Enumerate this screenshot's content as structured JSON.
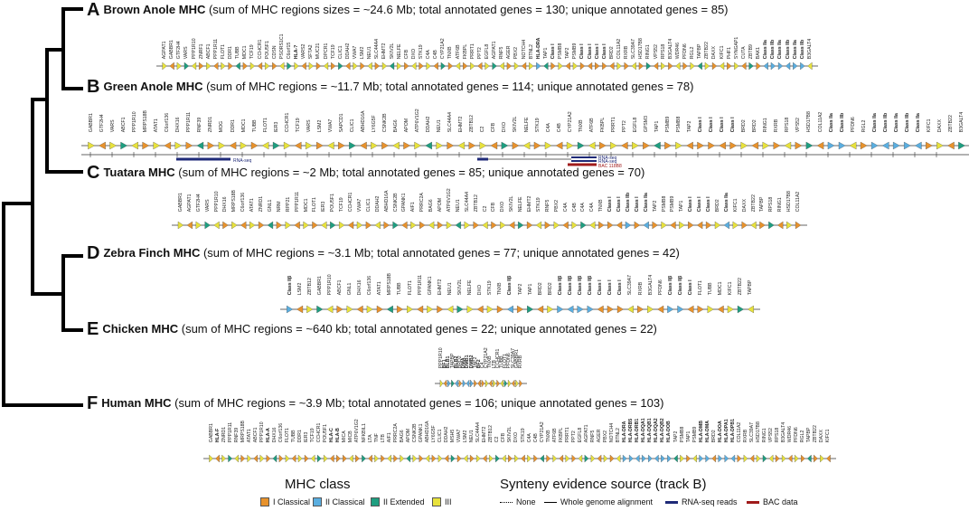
{
  "colors": {
    "class_I": "#e8922c",
    "class_II": "#5aaee0",
    "extended": "#1e9e80",
    "class_III": "#e8e23c",
    "rnaseq": "#1f2a78",
    "bac": "#a01b1b"
  },
  "panels": [
    {
      "letter": "A",
      "species": "Brown Anole MHC",
      "summary": " (sum of MHC regions sizes = ~24.6 Mb; total annotated genes = 130; unique annotated genes = 85)",
      "genes": [
        "AGPAT1",
        "GABBR1",
        "GTF2H4",
        "VARS",
        "PPP1R10",
        "ZNRF1",
        "ABCF1",
        "PPP1R11",
        "FLOT1",
        "DDR1",
        "TUBB",
        "MDC1",
        "TCF19",
        "CCHCR1",
        "POU5F1",
        "CDSN",
        "PSORS1C1",
        "C6orf15",
        "HLA-?",
        "VARS2",
        "SFTA2",
        "MUC21",
        "DPCR1",
        "TCF19",
        "CLIC1",
        "DDAH2",
        "VWA7",
        "LSM2",
        "NEU1",
        "SLC44A4",
        "EHMT2",
        "SKIV2L",
        "NELFE",
        "CFB",
        "DXO",
        "STK19",
        "C4A",
        "C4B",
        "CYP21A2",
        "TNXB",
        "ATF6B",
        "FKBPL",
        "PRRT1",
        "PPT2",
        "EGFL8",
        "AGPAT1",
        "RNF5",
        "AGER",
        "PBX2",
        "NOTCH4",
        "BTNL2",
        "HLA-DRA",
        "TAP1",
        "Class I",
        "PSMB8",
        "TAP2",
        "PSMB9",
        "Class I",
        "Class I",
        "Class I",
        "Class I",
        "BRD2",
        "COL11A2",
        "RXRB",
        "SLC39A7",
        "HSD17B8",
        "RING1",
        "VPS52",
        "RPS18",
        "B3GALT4",
        "WDR46",
        "PFDN6",
        "RGL2",
        "TAPBP",
        "ZBTB22",
        "DAXX",
        "KIFC1",
        "PHF1",
        "SYNGAP1",
        "CUTA",
        "ZBTB9",
        "BAK1",
        "Class IIa",
        "Class IIb",
        "Class IIa",
        "Class IIb",
        "Class IIa",
        "Class IIb",
        "B3GALT4"
      ],
      "gene_colors": "IIIIIIIIIIIIIIIIIIIIIIIIIIIIIIIIIIIIIIIIIIIIIIIIIIIIIIEIIIIIIIIIIIIIIIIIIIIIIIIIIIIIIIIIIIIIIIIIIIIIIIIIIIIIIIIIIIIIIIIIIIIIIIIIIIIIII",
      "track_note": ""
    },
    {
      "letter": "B",
      "species": "Green Anole MHC",
      "summary": " (sum of MHC regions = ~11.7 Mb; total annotated genes = 114; unique annotated genes = 78)",
      "genes": [
        "GABBR1",
        "GTF2H4",
        "VARS",
        "ABCF1",
        "PPP1R10",
        "MRPS18B",
        "ATAT1",
        "C6orf136",
        "DHX16",
        "PPP1R11",
        "RNF39",
        "ZNRD1",
        "MOG",
        "DDR1",
        "MDC1",
        "TUBB",
        "FLOT1",
        "IER3",
        "CCHCR1",
        "TCF19",
        "VARS",
        "LSM2",
        "VWA7",
        "SAPCD1",
        "CLIC1",
        "ABHD16A",
        "LY6G5F",
        "CSNK2B",
        "BAG6",
        "APOM",
        "ATP6V1G2",
        "DDAH2",
        "NEU1",
        "SLC44A4",
        "EHMT2",
        "ZBTB12",
        "C2",
        "CFB",
        "DXO",
        "SKIV2L",
        "NELFE",
        "STK19",
        "C4A",
        "C4B",
        "CYP21A2",
        "TNXB",
        "ATF6B",
        "FKBPL",
        "PRRT1",
        "PPT2",
        "EGFL8",
        "GPSM3",
        "TAP1",
        "PSMB9",
        "PSMB8",
        "TAP2",
        "Class I",
        "Class I",
        "Class I",
        "Class I",
        "BRD2",
        "BRD2",
        "RING1",
        "RXRB",
        "RPS18",
        "VPS52",
        "HSD17B8",
        "COL11A2",
        "Class IIa",
        "Class IIb",
        "PFDN6",
        "RGL2",
        "Class IIa",
        "Class IIb",
        "Class IIa",
        "Class IIb",
        "Class IIa",
        "KIFC1",
        "DAXX",
        "ZBTB22",
        "B3GALT4"
      ],
      "gene_colors": "",
      "track_labels": [
        "RNA-seq",
        "RNA-seq",
        "RNA-seq",
        "BAC 118B8"
      ]
    },
    {
      "letter": "C",
      "species": "Tuatara MHC",
      "summary": " (sum of MHC regions = ~2 Mb; total annotated genes = 85; unique annotated genes = 70)",
      "genes": [
        "GABBR1",
        "AGPAT1",
        "GTF2H4",
        "VARS",
        "PPP1R10",
        "DHX16",
        "MRPS18B",
        "C6orf136",
        "ATAT1",
        "ZNRD1",
        "GNL1",
        "NRM",
        "RPP21",
        "PPP1R11",
        "MDC1",
        "FLOT1",
        "IER3",
        "POU5F1",
        "TCF19",
        "CCHCR1",
        "VWA7",
        "CLIC1",
        "DDAH2",
        "ABHD16A",
        "CSNK2B",
        "GPANK1",
        "AIF1",
        "PRRC2A",
        "BAG6",
        "APOM",
        "ATP6V1G2",
        "NEU1",
        "SLC44A4",
        "ZBTB12",
        "C2",
        "CFB",
        "DXO",
        "SKIV2L",
        "NELFE",
        "EHMT2",
        "STK19",
        "RNF5",
        "PBX2",
        "C4A",
        "C4B",
        "C4A",
        "C4A",
        "TNXB",
        "Class I",
        "Class I",
        "Class IIb",
        "Class I",
        "Class IIa",
        "TAP2",
        "PSMB8",
        "PSMB9",
        "TAP1",
        "Class I",
        "Class I",
        "Class I",
        "BRD2",
        "Class IIa",
        "KIFC1",
        "DAXX",
        "ZBTB22",
        "TAPBP",
        "RPS18",
        "RING1",
        "HSD17B8",
        "COL11A2"
      ],
      "gene_colors": ""
    },
    {
      "letter": "D",
      "species": "Zebra Finch MHC",
      "summary": " (sum of MHC regions = ~3.1 Mb; total annotated genes = 77; unique annotated genes = 42)",
      "genes": [
        "Class IIβ",
        "LSM2",
        "ZBTB12",
        "GABBR1",
        "PPP1R10",
        "ABCF1",
        "GNL1",
        "DHX16",
        "C6orf136",
        "ATAT1",
        "MRPS18B",
        "TUBB",
        "FLOT1",
        "PPP1R11",
        "GPANK1",
        "EHMT2",
        "NEU1",
        "SKIV2L",
        "NELFE",
        "DXO",
        "STK19",
        "TNXB",
        "Class IIβ",
        "TAP2",
        "TAP1",
        "BRD2",
        "BRD2",
        "Class IIβ",
        "Class IIβ",
        "Class IIβ",
        "Class IIβ",
        "Class I",
        "Class I",
        "Class I",
        "SLC39A7",
        "RXRB",
        "B3GALT4",
        "PFDN6",
        "Class IIβ",
        "Class IIβ",
        "Class I",
        "FLOT1",
        "TUBB",
        "MDC1",
        "KIFC1",
        "ZBTB22",
        "TAPBP"
      ],
      "gene_colors": ""
    },
    {
      "letter": "E",
      "species": "Chicken MHC",
      "summary": " (sum of MHC regions = ~640 kb; total annotated genes = 22; unique annotated genes = 22)",
      "genes": [
        "PPP1R10",
        "BF1",
        "BLB1",
        "TAPBP",
        "BLB2",
        "BRD2",
        "DMA",
        "DMB1",
        "DMB2",
        "TAP2",
        "BF2",
        "C4",
        "CYP21A2",
        "TNXB",
        "LTB",
        "CCHCR1",
        "TUBB",
        "FLOT1",
        "PFDN6",
        "SLC39A7",
        "GABBR1",
        "RXRB"
      ],
      "gene_colors": ""
    },
    {
      "letter": "F",
      "species": "Human MHC",
      "summary": " (sum of MHC regions = ~3.9 Mb; total annotated genes = 106; unique annotated genes = 103)",
      "genes": [
        "GABBR1",
        "HLA-F",
        "ZNRD1",
        "PPP1R11",
        "RNF39",
        "MRPS18B",
        "ATAT1",
        "ABCF1",
        "PPP1R10",
        "HLA-A",
        "DHX16",
        "C6orf136",
        "FLOT1",
        "TUBB",
        "DDR1",
        "IER3",
        "TCF19",
        "CCHCR1",
        "POU5F1",
        "HLA-C",
        "HLA-B",
        "MICA",
        "MICB",
        "ATP6V1G2",
        "NFKBIL1",
        "LTA",
        "TNF",
        "LTB",
        "AIF1",
        "PRRC2A",
        "BAG6",
        "APOM",
        "CSNK2B",
        "GPANK1",
        "ABHD16A",
        "LY6G5F",
        "CLIC1",
        "DDAH2",
        "MSH5",
        "VWA7",
        "LSM2",
        "NEU1",
        "SLC44A4",
        "EHMT2",
        "ZBTB12",
        "C2",
        "CFB",
        "SKIV2L",
        "DXO",
        "STK19",
        "C4A",
        "C4B",
        "CYP21A2",
        "TNXB",
        "ATF6B",
        "FKBPL",
        "PRRT1",
        "PPT2",
        "EGFL8",
        "AGPAT1",
        "RNF5",
        "AGER",
        "PBX2",
        "NOTCH4",
        "BTNL2",
        "HLA-DRA",
        "HLA-DRB5",
        "HLA-DRB1",
        "HLA-DQA1",
        "HLA-DQB1",
        "HLA-DQA2",
        "HLA-DQB2",
        "HLA-DOB",
        "TAP2",
        "PSMB8",
        "TAP1",
        "PSMB9",
        "HLA-DMB",
        "HLA-DMA",
        "BRD2",
        "HLA-DOA",
        "HLA-DPA1",
        "HLA-DPB1",
        "COL11A2",
        "RXRB",
        "SLC39A7",
        "HSD17B8",
        "RING1",
        "VPS52",
        "RPS18",
        "B3GALT4",
        "WDR46",
        "PFDN6",
        "RGL2",
        "TAPBP",
        "ZBTB22",
        "DAXX",
        "KIFC1"
      ],
      "gene_colors": ""
    }
  ],
  "legend": {
    "mhc_title": "MHC class",
    "mhc_items": [
      "I Classical",
      "II Classical",
      "II Extended",
      "III"
    ],
    "synteny_title": "Synteny evidence source (track B)",
    "synteny_items": [
      "None",
      "Whole genome alignment",
      "RNA-seq reads",
      "BAC data"
    ]
  }
}
